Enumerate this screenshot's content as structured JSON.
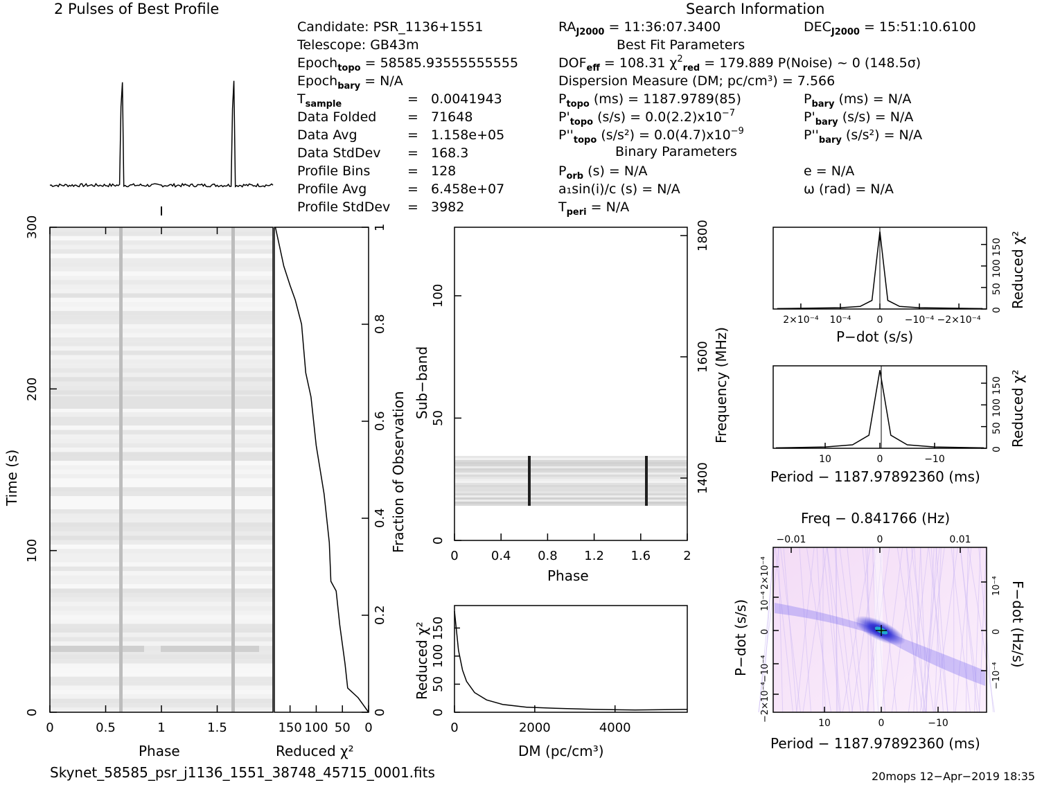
{
  "titles": {
    "profile_title": "2 Pulses of Best Profile",
    "search_info": "Search Information",
    "best_fit": "Best Fit Parameters",
    "binary": "Binary Parameters"
  },
  "col1": [
    {
      "label": "Candidate:  PSR_1136+1551"
    },
    {
      "label": "Telescope:  GB43m"
    },
    {
      "pre": "Epoch",
      "sub": "topo",
      "post": " = 58585.93555555555"
    },
    {
      "pre": "Epoch",
      "sub": "bary",
      "post": " = N/A"
    },
    {
      "pre": "T",
      "sub": "sample",
      "post": "",
      "eq": "=",
      "val": "0.0041943"
    },
    {
      "pre": "Data Folded",
      "eq": "=",
      "val": "71648"
    },
    {
      "pre": "Data Avg",
      "eq": "=",
      "val": "1.158e+05"
    },
    {
      "pre": "Data StdDev",
      "eq": "=",
      "val": "168.3"
    },
    {
      "pre": "Profile Bins",
      "eq": "=",
      "val": "128"
    },
    {
      "pre": "Profile Avg",
      "eq": "=",
      "val": "6.458e+07"
    },
    {
      "pre": "Profile StdDev",
      "eq": "=",
      "val": "3982"
    }
  ],
  "ra": {
    "pre": "RA",
    "sub": "J2000",
    "post": " = 11:36:07.3400"
  },
  "dec": {
    "pre": "DEC",
    "sub": "J2000",
    "post": " = 15:51:10.6100"
  },
  "dof": {
    "pre": "DOF",
    "sub": "eff",
    "mid": " = 108.31  χ",
    "sup": "2",
    "sub2": "red",
    "post": " = 179.889  P(Noise) ~ 0   (148.5σ)"
  },
  "dm_line": "Dispersion Measure (DM; pc/cm³) = 7.566",
  "ptopo": {
    "pre": "P",
    "sub": "topo",
    "post": " (ms) =  1187.9789(85)"
  },
  "pdtopo": {
    "pre": "P'",
    "sub": "topo",
    "post": " (s/s) = 0.0(2.2)x10",
    "sup": "−7"
  },
  "pddtopo": {
    "pre": "P''",
    "sub": "topo",
    "post": " (s/s²) = 0.0(4.7)x10",
    "sup": "−9"
  },
  "pbary": {
    "pre": "P",
    "sub": "bary",
    "post": " (ms) = N/A"
  },
  "pdbary": {
    "pre": "P'",
    "sub": "bary",
    "post": " (s/s) = N/A"
  },
  "pddbary": {
    "pre": "P''",
    "sub": "bary",
    "post": " (s/s²) = N/A"
  },
  "porb": {
    "pre": "P",
    "sub": "orb",
    "post": " (s) = N/A"
  },
  "asini": "a₁sin(i)/c (s) = N/A",
  "tperi": {
    "pre": "T",
    "sub": "peri",
    "post": " = N/A"
  },
  "ecc": "e = N/A",
  "omega": "ω (rad) = N/A",
  "footer_left": "Skynet_58585_psr_j1136_1551_38748_45715_0001.fits",
  "footer_right": "20mops 12−Apr−2019 18:35",
  "chart_data": [
    {
      "type": "line",
      "title": "2 Pulses of Best Profile",
      "x": [
        0.0,
        0.63,
        0.645,
        0.66,
        1.0,
        1.63,
        1.645,
        1.66,
        2.0
      ],
      "values": [
        0.02,
        0.02,
        1.0,
        0.02,
        0.02,
        0.02,
        1.0,
        0.02,
        0.02
      ]
    },
    {
      "type": "heatmap",
      "xlabel": "Phase",
      "ylabel": "Time (s)",
      "x_ticks": [
        "0",
        "0.5",
        "1",
        "1.5"
      ],
      "y_ticks": [
        "0",
        "100",
        "200",
        "300"
      ],
      "xlim": [
        0,
        2
      ],
      "ylim": [
        0,
        300
      ]
    },
    {
      "type": "line",
      "xlabel": "Reduced χ²",
      "ylabel": "Fraction of Observation",
      "x_ticks": [
        "150",
        "100",
        "50",
        "0"
      ],
      "y_ticks": [
        "0",
        "0.2",
        "0.4",
        "0.6",
        "0.8",
        "1"
      ],
      "xlim": [
        180,
        0
      ],
      "ylim": [
        0,
        1
      ],
      "x": [
        0,
        20,
        40,
        45,
        55,
        62,
        72,
        75,
        85,
        100,
        110,
        120,
        128,
        140,
        150,
        162,
        170,
        178
      ],
      "y": [
        0.0,
        0.03,
        0.05,
        0.1,
        0.18,
        0.25,
        0.27,
        0.35,
        0.45,
        0.55,
        0.65,
        0.7,
        0.8,
        0.85,
        0.88,
        0.92,
        0.96,
        1.0
      ]
    },
    {
      "type": "heatmap",
      "xlabel": "Phase",
      "ylabel": "Sub−band",
      "y2label": "Frequency (MHz)",
      "x_ticks": [
        "0",
        "0.4",
        "0.8",
        "1.2",
        "1.6",
        "2"
      ],
      "y_ticks": [
        "0",
        "50",
        "100"
      ],
      "y2_ticks": [
        "1400",
        "1600",
        "1800"
      ],
      "xlim": [
        0,
        2
      ],
      "ylim": [
        0,
        128
      ],
      "data_band": [
        14,
        35
      ]
    },
    {
      "type": "line",
      "xlabel": "DM (pc/cm³)",
      "ylabel": "Reduced χ²",
      "x_ticks": [
        "0",
        "2000",
        "4000"
      ],
      "y_ticks": [
        "0",
        "50",
        "100",
        "150"
      ],
      "xlim": [
        0,
        5800
      ],
      "ylim": [
        0,
        190
      ],
      "x": [
        0,
        100,
        200,
        300,
        500,
        800,
        1200,
        1800,
        2500,
        3500,
        4500,
        5800
      ],
      "y": [
        180,
        110,
        75,
        55,
        35,
        22,
        14,
        9,
        7,
        5,
        4,
        5
      ]
    },
    {
      "type": "line",
      "xlabel": "P−dot (s/s)",
      "ylabel": "Reduced χ²",
      "x_ticks": [
        "2×10⁻⁴",
        "10⁻⁴",
        "0",
        "−10⁻⁴",
        "−2×10⁻⁴"
      ],
      "y_ticks": [
        "0",
        "50",
        "100",
        "150"
      ],
      "x": [
        0.00026,
        0.0001,
        5e-05,
        2e-05,
        0.0,
        -2e-05,
        -5e-05,
        -0.0001,
        -0.00026
      ],
      "y": [
        1,
        3,
        6,
        20,
        180,
        20,
        6,
        3,
        1
      ]
    },
    {
      "type": "line",
      "xlabel": "Period − 1187.97892360 (ms)",
      "ylabel": "Reduced χ²",
      "x_ticks": [
        "10",
        "0",
        "−10"
      ],
      "y_ticks": [
        "0",
        "50",
        "100",
        "150"
      ],
      "x": [
        19,
        10,
        5,
        2,
        0,
        -2,
        -5,
        -10,
        -19
      ],
      "y": [
        1,
        3,
        8,
        30,
        180,
        30,
        8,
        3,
        1
      ]
    },
    {
      "type": "heatmap",
      "title": "Freq − 0.841766 (Hz)",
      "xlabel": "Period − 1187.97892360 (ms)",
      "ylabel": "P−dot (s/s)",
      "y2label": "F−dot (Hz/s)",
      "x_ticks": [
        "10",
        "0",
        "−10"
      ],
      "top_ticks": [
        "−0.01",
        "0",
        "0.01"
      ],
      "y_ticks": [
        "2×10⁻⁴",
        "10⁻⁴",
        "0",
        "−10⁻⁴",
        "−2×10⁻⁴"
      ],
      "y2_ticks": [
        "−10⁻⁴",
        "0",
        "10⁻⁴"
      ]
    }
  ]
}
